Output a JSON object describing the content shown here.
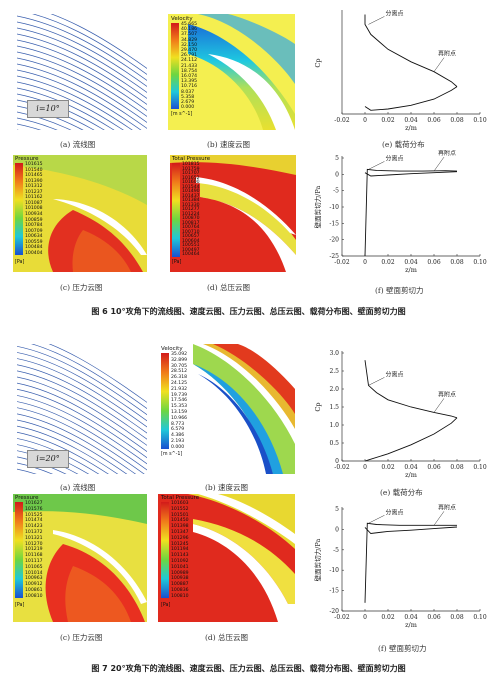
{
  "figure6": {
    "caption": "图 6   10°攻角下的流线图、速度云图、压力云图、总压云图、载荷分布图、壁面剪切力图",
    "angle_label": "i=10°",
    "panels": {
      "a": "(a)  流线图",
      "b": "(b)  速度云图",
      "c": "(c)  压力云图",
      "d": "(d)  总压云图",
      "e": "(e)  载荷分布",
      "f": "(f)  壁面剪切力"
    },
    "velocity_legend": {
      "title": "Velocity",
      "unit": "[m s^-1]",
      "values": [
        "45.665",
        "40.186",
        "37.507",
        "34.829",
        "32.150",
        "29.470",
        "26.791",
        "24.112",
        "21.433",
        "18.754",
        "16.074",
        "13.395",
        "10.716",
        "8.037",
        "5.358",
        "2.679",
        "0.000"
      ]
    },
    "pressure_legend": {
      "title": "Pressure",
      "unit": "[Pa]",
      "values": [
        "101615",
        "101540",
        "101465",
        "101390",
        "101312",
        "101237",
        "101162",
        "101087",
        "101008",
        "100934",
        "100859",
        "100784",
        "100709",
        "100634",
        "100559",
        "100484",
        "100404"
      ]
    },
    "total_pressure_legend": {
      "title": "Total Pressure",
      "unit": "[Pa]",
      "values": [
        "101815",
        "101759",
        "101707",
        "101652",
        "101600",
        "101544",
        "101490",
        "101437",
        "101384",
        "101330",
        "101277",
        "101224",
        "100870",
        "100817",
        "100764",
        "100710",
        "100657",
        "100604",
        "100551",
        "100497",
        "100464"
      ]
    },
    "load_chart": {
      "ylabel": "Cp",
      "xlabel": "z/m",
      "annotations": [
        "分离点",
        "再附点"
      ],
      "x_ticks": [
        "-0.02",
        "0",
        "0.02",
        "0.04",
        "0.06",
        "0.08",
        "0.10"
      ]
    },
    "shear_chart": {
      "ylabel": "壁面剪切力/Pa",
      "xlabel": "z/m",
      "annotations": [
        "分离点",
        "再附点"
      ],
      "x_ticks": [
        "-0.02",
        "0",
        "0.02",
        "0.04",
        "0.06",
        "0.08",
        "0.10"
      ],
      "y_ticks": [
        "5",
        "0",
        "-5",
        "-10",
        "-15",
        "-20",
        "-25"
      ]
    }
  },
  "figure7": {
    "caption": "图 7   20°攻角下的流线图、速度云图、压力云图、总压云图、载荷分布图、壁面剪切力图",
    "angle_label": "i=20°",
    "panels": {
      "a": "(a)  流线图",
      "b": "(b)  速度云图",
      "c": "(c)  压力云图",
      "d": "(d)  总压云图",
      "e": "(e)  载荷分布",
      "f": "(f)  壁面剪切力"
    },
    "velocity_legend": {
      "title": "Velocity",
      "unit": "[m s^-1]",
      "values": [
        "35.092",
        "32.899",
        "30.705",
        "28.512",
        "26.318",
        "24.125",
        "21.932",
        "19.739",
        "17.546",
        "15.353",
        "13.159",
        "10.966",
        "8.773",
        "6.579",
        "4.386",
        "2.193",
        "0.000"
      ]
    },
    "pressure_legend": {
      "title": "Pressure",
      "unit": "[Pa]",
      "values": [
        "101627",
        "101576",
        "101525",
        "101474",
        "101423",
        "101372",
        "101321",
        "101270",
        "101219",
        "101168",
        "101117",
        "101065",
        "101014",
        "100963",
        "100912",
        "100861",
        "100810"
      ]
    },
    "total_pressure_legend": {
      "title": "Total Pressure",
      "unit": "[Pa]",
      "values": [
        "101603",
        "101552",
        "101501",
        "101450",
        "101398",
        "101347",
        "101296",
        "101245",
        "101194",
        "101143",
        "101092",
        "101041",
        "100989",
        "100938",
        "100887",
        "100836",
        "100810"
      ]
    },
    "load_chart": {
      "ylabel": "Cp",
      "xlabel": "z/m",
      "annotations": [
        "分离点",
        "再附点"
      ],
      "x_ticks": [
        "-0.02",
        "0",
        "0.02",
        "0.04",
        "0.06",
        "0.08",
        "0.10"
      ],
      "y_ticks": [
        "3.0",
        "2.5",
        "2.0",
        "1.5",
        "1.0",
        "0.5",
        "0"
      ]
    },
    "shear_chart": {
      "ylabel": "壁面剪切力/Pa",
      "xlabel": "z/m",
      "annotations": [
        "分离点",
        "再附点"
      ],
      "x_ticks": [
        "-0.02",
        "0",
        "0.02",
        "0.04",
        "0.06",
        "0.08",
        "0.10"
      ],
      "y_ticks": [
        "5",
        "0",
        "-5",
        "-10",
        "-15",
        "-20"
      ]
    }
  },
  "chart_data": [
    {
      "type": "line",
      "figure": "6e",
      "xlabel": "z/m",
      "ylabel": "Cp",
      "xlim": [
        -0.02,
        0.1
      ],
      "series": [
        {
          "x": [
            0.0,
            0.0,
            0.005,
            0.02,
            0.04,
            0.06,
            0.075,
            0.08
          ],
          "y": [
            4.0,
            3.6,
            3.2,
            2.6,
            2.1,
            1.7,
            1.3,
            1.1
          ]
        },
        {
          "x": [
            0.0,
            0.005,
            0.02,
            0.04,
            0.06,
            0.075,
            0.08
          ],
          "y": [
            0.3,
            0.15,
            0.2,
            0.35,
            0.6,
            0.95,
            1.1
          ]
        }
      ]
    },
    {
      "type": "line",
      "figure": "6f",
      "xlabel": "z/m",
      "ylabel": "壁面剪切力/Pa",
      "xlim": [
        -0.02,
        0.1
      ],
      "ylim": [
        -25,
        5
      ],
      "series": [
        {
          "x": [
            0.0,
            0.002,
            0.01,
            0.03,
            0.05,
            0.07,
            0.08
          ],
          "y": [
            -25,
            1.5,
            1.2,
            1.0,
            1.0,
            1.1,
            1.0
          ]
        },
        {
          "x": [
            0.0,
            0.005,
            0.02,
            0.04,
            0.06,
            0.08
          ],
          "y": [
            0.5,
            -0.5,
            -0.2,
            0.2,
            0.5,
            0.8
          ]
        }
      ]
    },
    {
      "type": "line",
      "figure": "7e",
      "xlabel": "z/m",
      "ylabel": "Cp",
      "xlim": [
        -0.02,
        0.1
      ],
      "ylim": [
        0,
        3.0
      ],
      "series": [
        {
          "x": [
            0.0,
            0.003,
            0.01,
            0.02,
            0.04,
            0.06,
            0.075,
            0.08
          ],
          "y": [
            2.8,
            2.1,
            1.9,
            1.7,
            1.5,
            1.35,
            1.25,
            1.2
          ]
        },
        {
          "x": [
            0.0,
            0.005,
            0.02,
            0.04,
            0.06,
            0.075,
            0.08
          ],
          "y": [
            0.0,
            0.05,
            0.2,
            0.45,
            0.75,
            1.05,
            1.2
          ]
        }
      ]
    },
    {
      "type": "line",
      "figure": "7f",
      "xlabel": "z/m",
      "ylabel": "壁面剪切力/Pa",
      "xlim": [
        -0.02,
        0.1
      ],
      "ylim": [
        -20,
        5
      ],
      "series": [
        {
          "x": [
            0.0,
            0.002,
            0.01,
            0.03,
            0.05,
            0.07,
            0.08
          ],
          "y": [
            -18,
            1.5,
            1.2,
            1.0,
            1.0,
            1.0,
            1.0
          ]
        },
        {
          "x": [
            0.0,
            0.005,
            0.02,
            0.04,
            0.06,
            0.08
          ],
          "y": [
            0.5,
            -1.0,
            -0.5,
            -0.2,
            0.2,
            0.6
          ]
        }
      ]
    }
  ]
}
